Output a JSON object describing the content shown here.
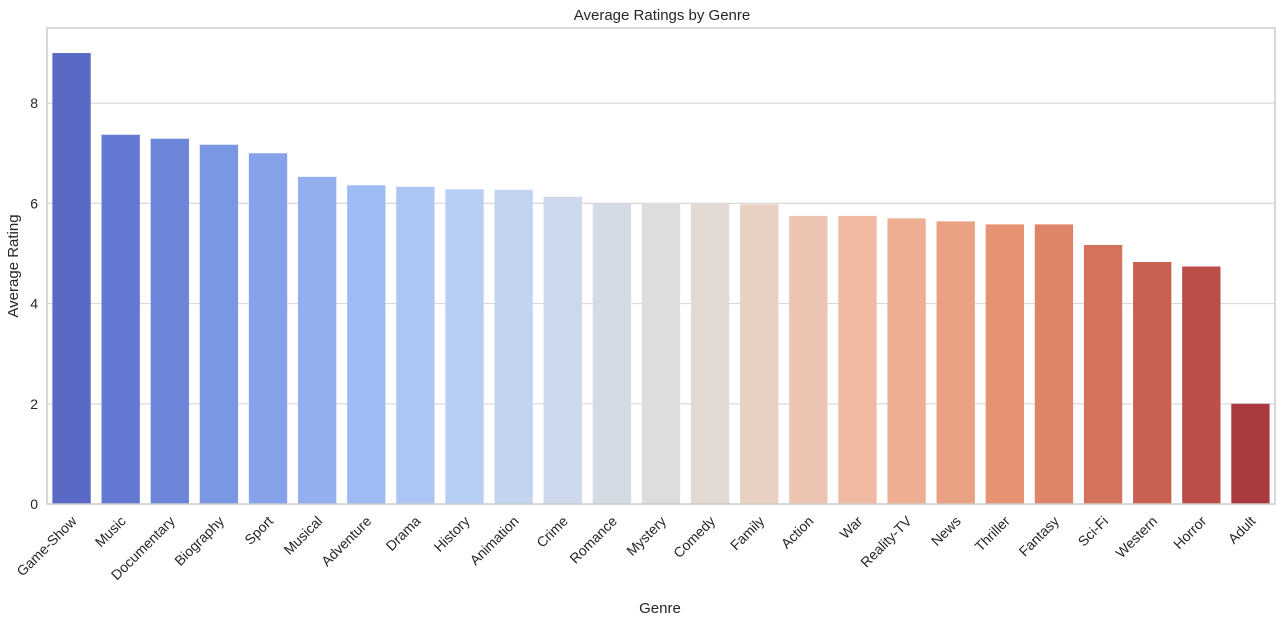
{
  "chart_data": {
    "type": "bar",
    "title": "Average Ratings by Genre",
    "xlabel": "Genre",
    "ylabel": "Average Rating",
    "ylim": [
      0,
      9.5
    ],
    "yticks": [
      0,
      2,
      4,
      6,
      8
    ],
    "grid": true,
    "categories": [
      "Game-Show",
      "Music",
      "Documentary",
      "Biography",
      "Sport",
      "Musical",
      "Adventure",
      "Drama",
      "History",
      "Animation",
      "Crime",
      "Romance",
      "Mystery",
      "Comedy",
      "Family",
      "Action",
      "War",
      "Reality-TV",
      "News",
      "Thriller",
      "Fantasy",
      "Sci-Fi",
      "Western",
      "Horror",
      "Adult"
    ],
    "values": [
      9.0,
      7.37,
      7.29,
      7.17,
      7.0,
      6.53,
      6.36,
      6.33,
      6.28,
      6.27,
      6.13,
      6.0,
      6.0,
      6.0,
      5.98,
      5.75,
      5.75,
      5.7,
      5.64,
      5.58,
      5.58,
      5.17,
      4.83,
      4.74,
      2.0
    ],
    "colors": [
      "#5a69c4",
      "#6479d1",
      "#6e86da",
      "#7a97e3",
      "#85a2ea",
      "#92afef",
      "#9fbbf3",
      "#acc5f5",
      "#b7cef5",
      "#c2d4f2",
      "#ccd9ed",
      "#d5dbe5",
      "#dcdddd",
      "#e3d9d3",
      "#e8d0c3",
      "#edc4b2",
      "#efb9a2",
      "#eeae91",
      "#eaa183",
      "#e59373",
      "#de8468",
      "#d4735d",
      "#c96153",
      "#bb4e49",
      "#ab3a40"
    ]
  }
}
